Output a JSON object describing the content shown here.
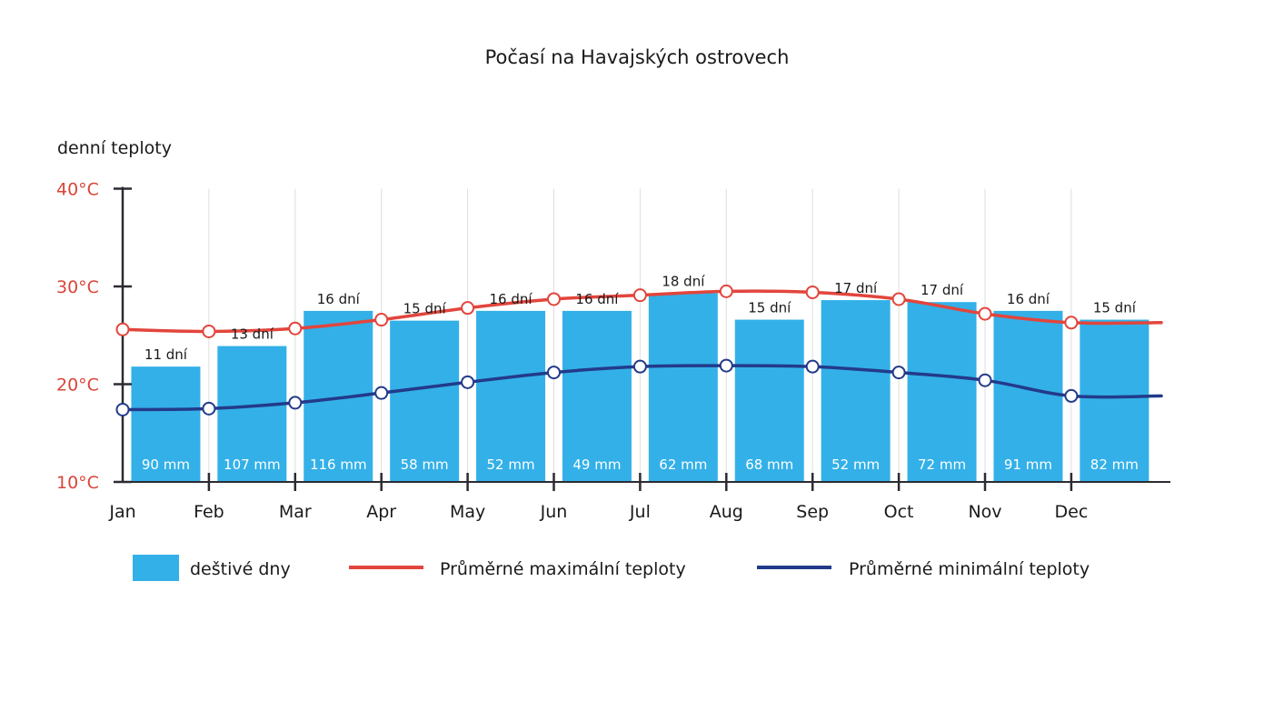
{
  "chart_data": {
    "type": "bar",
    "title": "Počasí na Havajských ostrovech",
    "ylabel": "denní teploty",
    "ylim": [
      10,
      40
    ],
    "y_ticks": [
      "10°C",
      "20°C",
      "30°C",
      "40°C"
    ],
    "y_tick_values": [
      10,
      20,
      30,
      40
    ],
    "categories": [
      "Jan",
      "Feb",
      "Mar",
      "Apr",
      "May",
      "Jun",
      "Jul",
      "Aug",
      "Sep",
      "Oct",
      "Nov",
      "Dec"
    ],
    "grid": "vertical",
    "legend_position": "bottom",
    "series": [
      {
        "name": "deštivé dny",
        "kind": "bar",
        "color": "#33b0e8",
        "bar_heights_c": [
          21.8,
          23.9,
          27.5,
          26.5,
          27.5,
          27.5,
          29.3,
          26.6,
          28.6,
          28.4,
          27.5,
          26.6
        ],
        "day_labels": [
          "11 dní",
          "13 dní",
          "16 dní",
          "15 dní",
          "16 dní",
          "16 dní",
          "18 dní",
          "15 dní",
          "17 dní",
          "17 dní",
          "16 dní",
          "15 dní"
        ],
        "rain_labels": [
          "90 mm",
          "107 mm",
          "116 mm",
          "58 mm",
          "52 mm",
          "49 mm",
          "62 mm",
          "68  mm",
          "52 mm",
          "72 mm",
          "91 mm",
          "82 mm"
        ]
      },
      {
        "name": "Průměrné maximální teploty",
        "kind": "line",
        "color": "#e2453c",
        "values": [
          25.6,
          25.4,
          25.7,
          26.6,
          27.8,
          28.7,
          29.1,
          29.5,
          29.4,
          28.7,
          27.2,
          26.3
        ],
        "tail_value": 26.3
      },
      {
        "name": "Průměrné minimální teploty",
        "kind": "line",
        "color": "#233a8a",
        "values": [
          17.4,
          17.5,
          18.1,
          19.1,
          20.2,
          21.2,
          21.8,
          21.9,
          21.8,
          21.2,
          20.4,
          18.8
        ],
        "tail_value": 18.8
      }
    ]
  }
}
